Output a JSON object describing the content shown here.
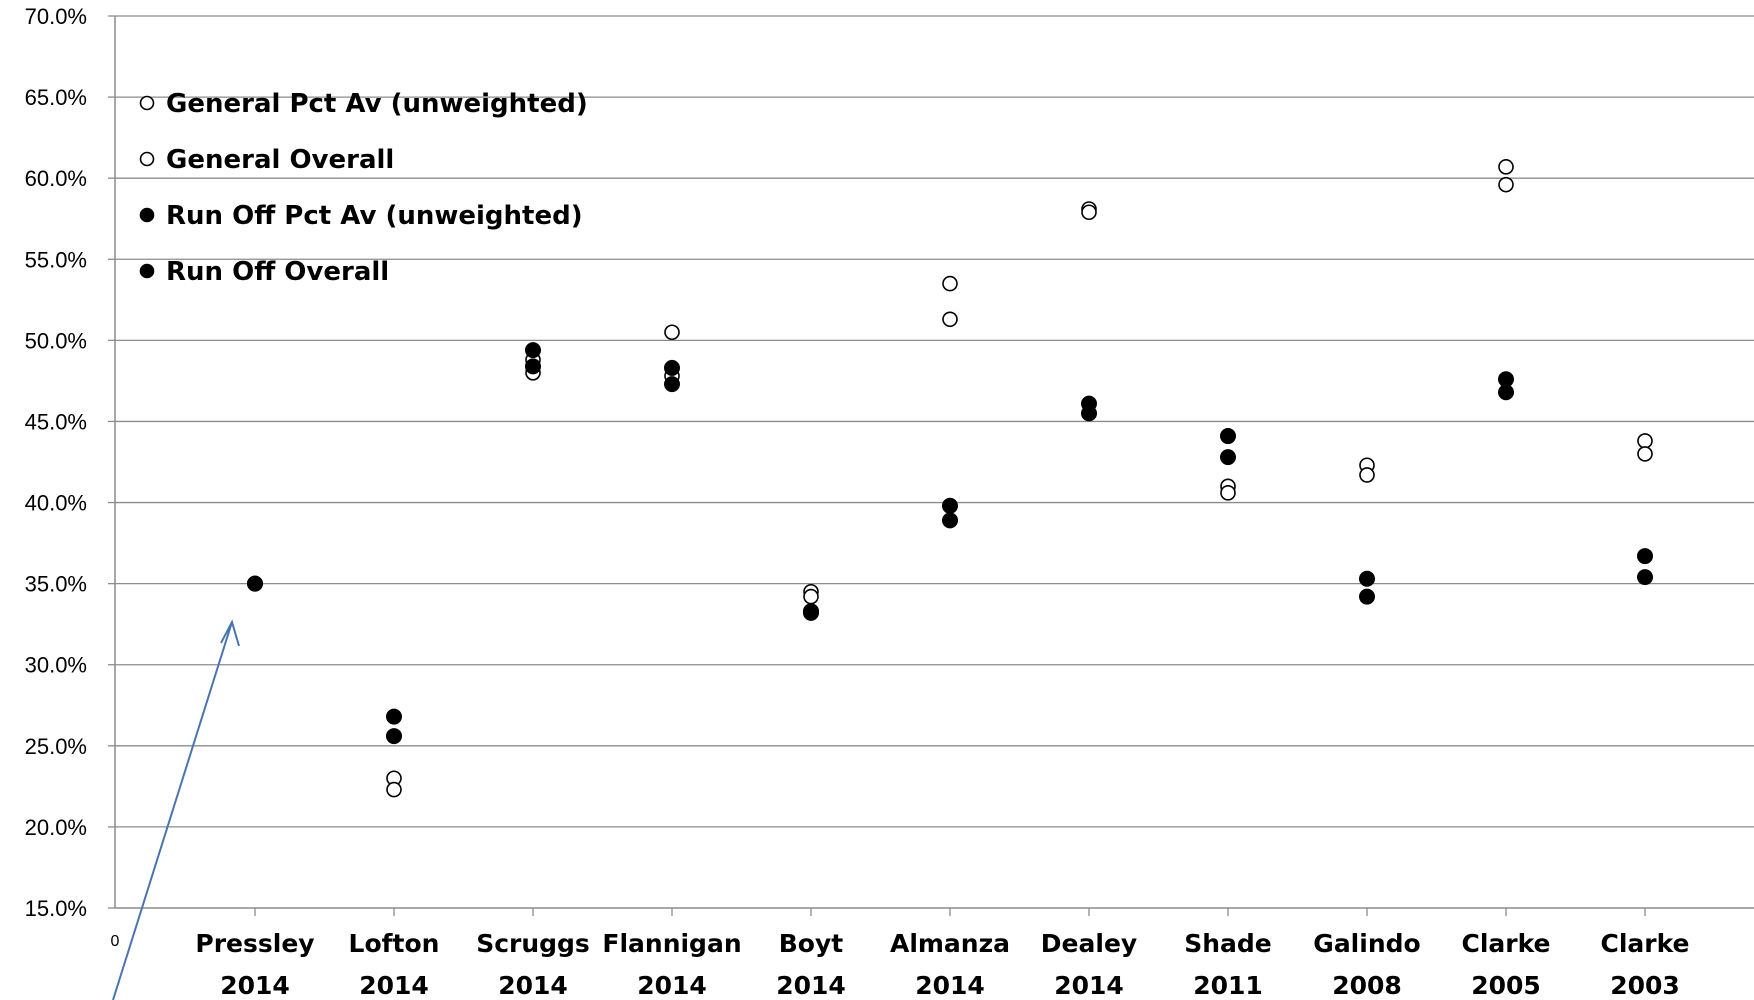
{
  "chart_data": {
    "type": "scatter",
    "title": "",
    "xlabel": "",
    "ylabel": "",
    "ylim": [
      15,
      70
    ],
    "y_ticks": [
      "15.0%",
      "20.0%",
      "25.0%",
      "30.0%",
      "35.0%",
      "40.0%",
      "45.0%",
      "50.0%",
      "55.0%",
      "60.0%",
      "65.0%",
      "70.0%"
    ],
    "x_zero_label": "0",
    "categories": [
      {
        "name": "Pressley",
        "year": "2014"
      },
      {
        "name": "Lofton",
        "year": "2014"
      },
      {
        "name": "Scruggs",
        "year": "2014"
      },
      {
        "name": "Flannigan",
        "year": "2014"
      },
      {
        "name": "Boyt",
        "year": "2014"
      },
      {
        "name": "Almanza",
        "year": "2014"
      },
      {
        "name": "Dealey",
        "year": "2014"
      },
      {
        "name": "Shade",
        "year": "2011"
      },
      {
        "name": "Galindo",
        "year": "2008"
      },
      {
        "name": "Clarke",
        "year": "2005"
      },
      {
        "name": "Clarke",
        "year": "2003"
      }
    ],
    "grid": true,
    "legend_position": "top-left",
    "series": [
      {
        "name": "General Pct Av (unweighted)",
        "marker": "open-circle",
        "values": [
          null,
          23.0,
          48.8,
          50.5,
          34.5,
          53.5,
          58.1,
          41.0,
          42.3,
          60.7,
          43.8
        ]
      },
      {
        "name": "General Overall",
        "marker": "open-circle",
        "values": [
          null,
          22.3,
          48.0,
          47.8,
          34.2,
          51.3,
          57.9,
          40.6,
          41.7,
          59.6,
          43.0
        ]
      },
      {
        "name": "Run Off Pct Av (unweighted)",
        "marker": "filled-circle",
        "values": [
          35.0,
          26.8,
          49.4,
          48.3,
          33.3,
          39.8,
          46.1,
          44.1,
          35.3,
          47.6,
          36.7
        ]
      },
      {
        "name": "Run Off Overall",
        "marker": "filled-circle",
        "values": [
          35.0,
          25.6,
          48.4,
          47.3,
          33.2,
          38.9,
          45.5,
          42.8,
          34.2,
          46.8,
          35.4
        ]
      }
    ],
    "colors": {
      "marker": "#000000",
      "grid": "#8c8c8c",
      "arrow": "#4a74b0"
    }
  }
}
